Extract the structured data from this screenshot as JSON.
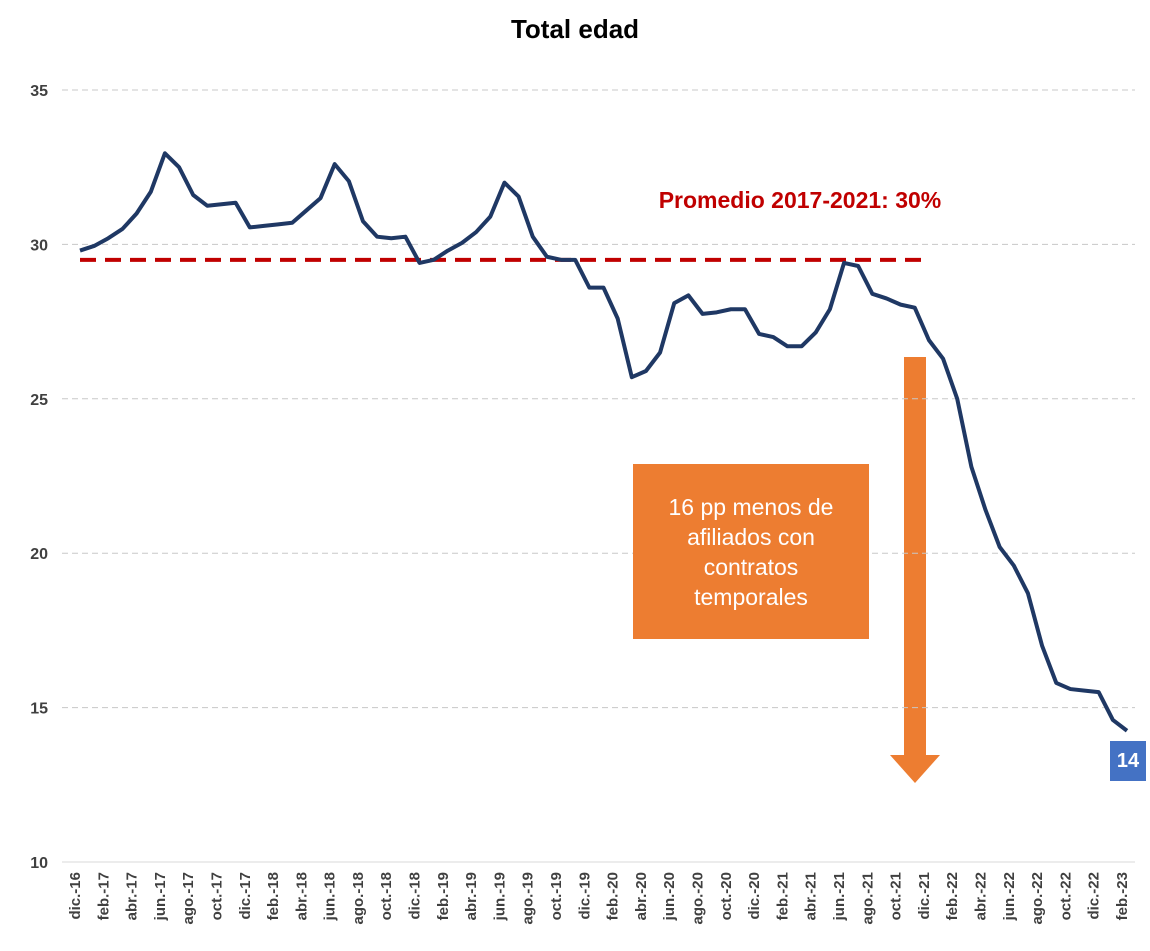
{
  "chart_data": {
    "type": "line",
    "title": "Total edad",
    "categories": [
      "dic.-16",
      null,
      "feb.-17",
      null,
      "abr.-17",
      null,
      "jun.-17",
      null,
      "ago.-17",
      null,
      "oct.-17",
      null,
      "dic.-17",
      null,
      "feb.-18",
      null,
      "abr.-18",
      null,
      "jun.-18",
      null,
      "ago.-18",
      null,
      "oct.-18",
      null,
      "dic.-18",
      null,
      "feb.-19",
      null,
      "abr.-19",
      null,
      "jun.-19",
      null,
      "ago.-19",
      null,
      "oct.-19",
      null,
      "dic.-19",
      null,
      "feb.-20",
      null,
      "abr.-20",
      null,
      "jun.-20",
      null,
      "ago.-20",
      null,
      "oct.-20",
      null,
      "dic.-20",
      null,
      "feb.-21",
      null,
      "abr.-21",
      null,
      "jun.-21",
      null,
      "ago.-21",
      null,
      "oct.-21",
      null,
      "dic.-21",
      null,
      "feb.-22",
      null,
      "abr.-22",
      null,
      "jun.-22",
      null,
      "ago.-22",
      null,
      "oct.-22",
      null,
      "dic.-22",
      null,
      "feb.-23"
    ],
    "series": [
      {
        "name": "Total edad",
        "color": "#1f3864",
        "values": [
          29.8,
          29.95,
          30.2,
          30.5,
          31.0,
          31.7,
          32.95,
          32.5,
          31.6,
          31.25,
          31.3,
          31.35,
          30.55,
          30.6,
          30.65,
          30.7,
          31.1,
          31.5,
          32.6,
          32.05,
          30.75,
          30.25,
          30.2,
          30.25,
          29.4,
          29.5,
          29.8,
          30.05,
          30.4,
          30.9,
          32.0,
          31.55,
          30.25,
          29.6,
          29.5,
          29.5,
          28.6,
          28.6,
          27.6,
          25.7,
          25.9,
          26.5,
          28.1,
          28.35,
          27.75,
          27.8,
          27.9,
          27.9,
          27.1,
          27.0,
          26.7,
          26.7,
          27.15,
          27.9,
          29.4,
          29.3,
          28.4,
          28.25,
          28.05,
          27.95,
          26.9,
          26.3,
          25.0,
          22.8,
          21.4,
          20.2,
          19.6,
          18.7,
          17.0,
          15.8,
          15.6,
          15.55,
          15.5,
          14.6,
          14.25
        ],
        "value_labels": {
          "74": "14"
        }
      }
    ],
    "reference_line": {
      "value": 29.5,
      "label": "Promedio 2017-2021: 30%",
      "color": "#c00000",
      "x_range": [
        "dic.-16",
        "dic.-21"
      ]
    },
    "annotation": "16 pp menos de afiliados con contratos temporales",
    "ylim": [
      10,
      35
    ],
    "yticks": [
      10,
      15,
      20,
      25,
      30,
      35
    ],
    "grid": true
  }
}
